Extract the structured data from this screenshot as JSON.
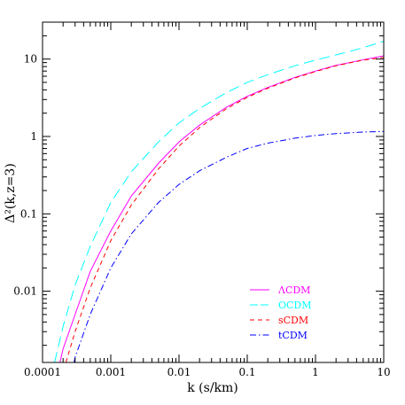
{
  "chart_data": {
    "type": "line",
    "xlabel": "k (s/km)",
    "ylabel": "Δ²(k,z=3)",
    "xscale": "log",
    "yscale": "log",
    "xlim": [
      0.0001,
      10
    ],
    "ylim": [
      0.0012,
      30
    ],
    "grid": false,
    "legend_position": "bottom-right",
    "x_ticks": [
      {
        "value": 0.0001,
        "label": "0.0001"
      },
      {
        "value": 0.001,
        "label": "0.001"
      },
      {
        "value": 0.01,
        "label": "0.01"
      },
      {
        "value": 0.1,
        "label": "0.1"
      },
      {
        "value": 1,
        "label": "1"
      },
      {
        "value": 10,
        "label": "10"
      }
    ],
    "y_ticks": [
      {
        "value": 0.01,
        "label": "0.01"
      },
      {
        "value": 0.1,
        "label": "0.1"
      },
      {
        "value": 1,
        "label": "1"
      },
      {
        "value": 10,
        "label": "10"
      }
    ],
    "series": [
      {
        "name": "ΛCDM",
        "color": "#ff00ff",
        "dash": "solid",
        "x": [
          0.00018,
          0.0002,
          0.0003,
          0.0005,
          0.001,
          0.002,
          0.005,
          0.01,
          0.02,
          0.05,
          0.1,
          0.2,
          0.5,
          1,
          2,
          5,
          10
        ],
        "y": [
          0.0012,
          0.0018,
          0.005,
          0.018,
          0.06,
          0.17,
          0.45,
          0.85,
          1.4,
          2.4,
          3.3,
          4.3,
          5.8,
          7,
          8.3,
          9.8,
          11
        ]
      },
      {
        "name": "OCDM",
        "color": "#00ffff",
        "dash": "long-dash",
        "x": [
          0.00015,
          0.0002,
          0.0003,
          0.0005,
          0.001,
          0.002,
          0.005,
          0.01,
          0.02,
          0.05,
          0.1,
          0.2,
          0.5,
          1,
          2,
          5,
          10
        ],
        "y": [
          0.0012,
          0.0035,
          0.012,
          0.038,
          0.14,
          0.35,
          0.85,
          1.5,
          2.3,
          3.7,
          5,
          6.3,
          8.2,
          9.7,
          11.3,
          14,
          17
        ]
      },
      {
        "name": "sCDM",
        "color": "#ff0000",
        "dash": "short-dash",
        "x": [
          0.00022,
          0.0003,
          0.0005,
          0.001,
          0.002,
          0.005,
          0.01,
          0.02,
          0.05,
          0.1,
          0.2,
          0.5,
          1,
          2,
          5,
          10
        ],
        "y": [
          0.0012,
          0.003,
          0.011,
          0.045,
          0.13,
          0.38,
          0.75,
          1.3,
          2.3,
          3.2,
          4.2,
          5.7,
          6.9,
          8.2,
          9.7,
          10.5
        ]
      },
      {
        "name": "tCDM",
        "color": "#0000ff",
        "dash": "dash-dot",
        "x": [
          0.00029,
          0.0003,
          0.0005,
          0.001,
          0.002,
          0.005,
          0.01,
          0.02,
          0.05,
          0.1,
          0.2,
          0.5,
          1,
          2,
          5,
          10
        ],
        "y": [
          0.0012,
          0.0014,
          0.005,
          0.02,
          0.055,
          0.14,
          0.24,
          0.36,
          0.54,
          0.7,
          0.82,
          0.95,
          1.03,
          1.09,
          1.14,
          1.16
        ]
      }
    ]
  }
}
